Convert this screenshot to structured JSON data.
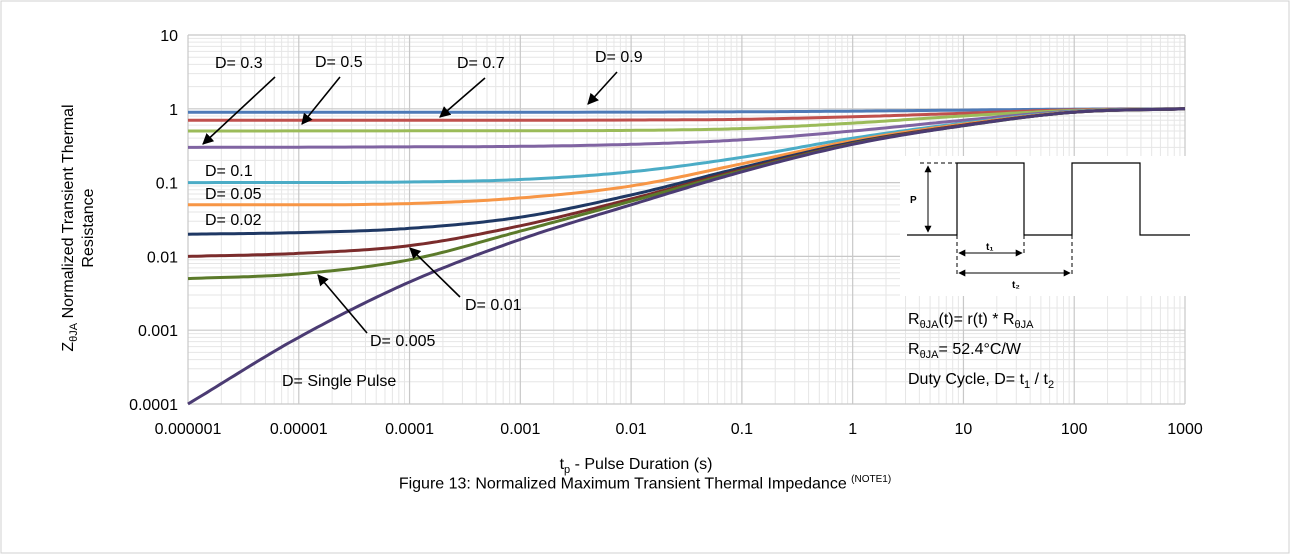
{
  "chart_data": {
    "type": "line",
    "x_scale": "log",
    "y_scale": "log",
    "xlim": [
      1e-06,
      1000
    ],
    "ylim": [
      0.0001,
      10
    ],
    "grid": true,
    "legend": "none (inline labels)",
    "x_ticks": [
      "0.000001",
      "0.00001",
      "0.0001",
      "0.001",
      "0.01",
      "0.1",
      "1",
      "10",
      "100",
      "1000"
    ],
    "y_ticks": [
      "10",
      "1",
      "0.1",
      "0.01",
      "0.001",
      "0.0001"
    ],
    "xlabel": {
      "pre": "t",
      "sub": "p",
      "post": " - Pulse Duration (s)"
    },
    "ylabel": {
      "pre": "Z",
      "sub": "θJA",
      "line1": " Normalized Transient Thermal",
      "line2": "Resistance"
    },
    "series": [
      {
        "name": "D= 0.9",
        "color": "#4e7ab7",
        "points": [
          [
            1e-06,
            0.9
          ],
          [
            0.01,
            0.902
          ],
          [
            0.1,
            0.91
          ],
          [
            1,
            0.93
          ],
          [
            10,
            0.96
          ],
          [
            100,
            0.99
          ],
          [
            1000,
            1.0
          ]
        ]
      },
      {
        "name": "D= 0.7",
        "color": "#c0504d",
        "points": [
          [
            1e-06,
            0.7
          ],
          [
            0.01,
            0.705
          ],
          [
            0.1,
            0.72
          ],
          [
            1,
            0.78
          ],
          [
            10,
            0.87
          ],
          [
            100,
            0.97
          ],
          [
            1000,
            1.0
          ]
        ]
      },
      {
        "name": "D= 0.5",
        "color": "#9bbb59",
        "points": [
          [
            1e-06,
            0.5
          ],
          [
            0.001,
            0.505
          ],
          [
            0.01,
            0.51
          ],
          [
            0.1,
            0.54
          ],
          [
            1,
            0.64
          ],
          [
            10,
            0.8
          ],
          [
            100,
            0.95
          ],
          [
            1000,
            1.0
          ]
        ]
      },
      {
        "name": "D= 0.3",
        "color": "#8064a2",
        "points": [
          [
            1e-06,
            0.3
          ],
          [
            0.0001,
            0.305
          ],
          [
            0.001,
            0.31
          ],
          [
            0.01,
            0.33
          ],
          [
            0.1,
            0.38
          ],
          [
            1,
            0.5
          ],
          [
            10,
            0.7
          ],
          [
            100,
            0.93
          ],
          [
            1000,
            1.0
          ]
        ]
      },
      {
        "name": "D= 0.1",
        "color": "#4bacc6",
        "points": [
          [
            1e-06,
            0.1
          ],
          [
            0.0001,
            0.102
          ],
          [
            0.001,
            0.11
          ],
          [
            0.01,
            0.14
          ],
          [
            0.1,
            0.22
          ],
          [
            1,
            0.4
          ],
          [
            10,
            0.64
          ],
          [
            100,
            0.92
          ],
          [
            1000,
            1.0
          ]
        ]
      },
      {
        "name": "D= 0.05",
        "color": "#f79646",
        "points": [
          [
            1e-06,
            0.05
          ],
          [
            0.0001,
            0.052
          ],
          [
            0.001,
            0.062
          ],
          [
            0.01,
            0.09
          ],
          [
            0.1,
            0.18
          ],
          [
            1,
            0.37
          ],
          [
            10,
            0.62
          ],
          [
            100,
            0.91
          ],
          [
            1000,
            1.0
          ]
        ]
      },
      {
        "name": "D= 0.02",
        "color": "#1f3864",
        "points": [
          [
            1e-06,
            0.02
          ],
          [
            1e-05,
            0.021
          ],
          [
            0.0001,
            0.024
          ],
          [
            0.001,
            0.034
          ],
          [
            0.01,
            0.068
          ],
          [
            0.1,
            0.16
          ],
          [
            1,
            0.35
          ],
          [
            10,
            0.6
          ],
          [
            100,
            0.9
          ],
          [
            1000,
            1.0
          ]
        ]
      },
      {
        "name": "D= 0.01",
        "color": "#7b2c2c",
        "points": [
          [
            1e-06,
            0.01
          ],
          [
            1e-05,
            0.011
          ],
          [
            0.0001,
            0.014
          ],
          [
            0.001,
            0.026
          ],
          [
            0.01,
            0.06
          ],
          [
            0.1,
            0.15
          ],
          [
            1,
            0.34
          ],
          [
            10,
            0.6
          ],
          [
            100,
            0.9
          ],
          [
            1000,
            1.0
          ]
        ]
      },
      {
        "name": "D= 0.005",
        "color": "#5b7a2a",
        "points": [
          [
            1e-06,
            0.005
          ],
          [
            1e-05,
            0.0058
          ],
          [
            0.0001,
            0.009
          ],
          [
            0.001,
            0.022
          ],
          [
            0.01,
            0.056
          ],
          [
            0.1,
            0.145
          ],
          [
            1,
            0.335
          ],
          [
            10,
            0.59
          ],
          [
            100,
            0.9
          ],
          [
            1000,
            1.0
          ]
        ]
      },
      {
        "name": "D= Single Pulse",
        "color": "#4b3b73",
        "points": [
          [
            1e-06,
            0.0001
          ],
          [
            1e-05,
            0.0008
          ],
          [
            0.0001,
            0.0045
          ],
          [
            0.001,
            0.017
          ],
          [
            0.01,
            0.05
          ],
          [
            0.1,
            0.14
          ],
          [
            1,
            0.33
          ],
          [
            10,
            0.59
          ],
          [
            100,
            0.9
          ],
          [
            1000,
            1.0
          ]
        ]
      }
    ],
    "annotations": [
      "D= 0.9",
      "D= 0.7",
      "D= 0.5",
      "D= 0.3",
      "D= 0.1",
      "D= 0.05",
      "D= 0.02",
      "D= 0.01",
      "D= 0.005",
      "D= Single Pulse"
    ],
    "inset": {
      "p_label": "P",
      "t1_label": "t₁",
      "t2_label": "t₂",
      "formula": {
        "a": "R",
        "a_sub": "θJA",
        "b": "(t)= r(t) * R",
        "b_sub": "θJA"
      },
      "rth": {
        "a": "R",
        "a_sub": "θJA",
        "b": "= 52.4°C/W"
      },
      "duty": {
        "a": "Duty Cycle, D= t",
        "a_sub": "1",
        "b": " / t",
        "b_sub": "2"
      }
    }
  },
  "caption": {
    "text": "Figure 13: Normalized Maximum Transient Thermal Impedance ",
    "note": "(NOTE1)"
  }
}
